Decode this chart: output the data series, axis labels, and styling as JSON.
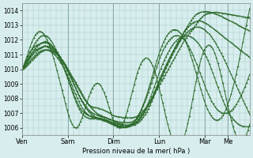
{
  "xlabel": "Pression niveau de la mer( hPa )",
  "bg_color": "#d8eeee",
  "grid_color": "#aacccc",
  "line_color": "#2d6b2d",
  "ylim": [
    1005.5,
    1014.5
  ],
  "yticks": [
    1006,
    1007,
    1008,
    1009,
    1010,
    1011,
    1012,
    1013,
    1014
  ],
  "day_labels": [
    "Ven",
    "Sam",
    "Dim",
    "Lun",
    "Mar",
    "Me"
  ],
  "day_positions": [
    0,
    48,
    96,
    144,
    192,
    216
  ],
  "total_points": 240,
  "series": [
    [
      1010.0,
      1010.15,
      1010.3,
      1010.5,
      1010.7,
      1010.9,
      1011.1,
      1011.2,
      1011.3,
      1011.35,
      1011.4,
      1011.45,
      1011.5,
      1011.55,
      1011.6,
      1011.55,
      1011.5,
      1011.45,
      1011.4,
      1011.3,
      1011.2,
      1011.1,
      1011.0,
      1010.85,
      1010.7,
      1010.55,
      1010.4,
      1010.2,
      1010.0,
      1009.8,
      1009.6,
      1009.4,
      1009.2,
      1009.0,
      1008.8,
      1008.6,
      1008.4,
      1008.2,
      1008.0,
      1007.85,
      1007.7,
      1007.6,
      1007.5,
      1007.45,
      1007.4,
      1007.38,
      1007.36,
      1007.35,
      1007.3,
      1007.25,
      1007.2,
      1007.15,
      1007.1,
      1007.05,
      1007.0,
      1006.9,
      1006.85,
      1006.8,
      1006.78,
      1006.76,
      1006.74,
      1006.72,
      1006.7,
      1006.68,
      1006.68,
      1006.68,
      1006.68,
      1006.68,
      1006.7,
      1006.72,
      1006.75,
      1006.8,
      1006.9,
      1007.0,
      1007.1,
      1007.2,
      1007.35,
      1007.5,
      1007.65,
      1007.8,
      1008.0,
      1008.2,
      1008.4,
      1008.6,
      1008.8,
      1009.0,
      1009.2,
      1009.4,
      1009.6,
      1009.8,
      1010.0,
      1010.2,
      1010.4,
      1010.6,
      1010.8,
      1011.0,
      1011.2,
      1011.4,
      1011.6,
      1011.8,
      1012.0,
      1012.15,
      1012.3,
      1012.45,
      1012.6,
      1012.75,
      1012.9,
      1013.05,
      1013.2,
      1013.35,
      1013.5,
      1013.6,
      1013.7,
      1013.75,
      1013.8,
      1013.82,
      1013.84,
      1013.86,
      1013.88,
      1013.9,
      1013.88,
      1013.86,
      1013.85,
      1013.83,
      1013.82,
      1013.8,
      1013.78,
      1013.76,
      1013.74,
      1013.72,
      1013.7,
      1013.68,
      1013.66,
      1013.64,
      1013.62,
      1013.6,
      1013.58,
      1013.56,
      1013.54,
      1013.52,
      1013.5
    ],
    [
      1010.0,
      1010.2,
      1010.45,
      1010.7,
      1010.95,
      1011.2,
      1011.35,
      1011.5,
      1011.6,
      1011.65,
      1011.7,
      1011.75,
      1011.8,
      1011.85,
      1011.9,
      1011.85,
      1011.8,
      1011.7,
      1011.6,
      1011.45,
      1011.3,
      1011.15,
      1011.0,
      1010.82,
      1010.64,
      1010.46,
      1010.28,
      1010.1,
      1009.9,
      1009.7,
      1009.5,
      1009.3,
      1009.1,
      1008.9,
      1008.7,
      1008.5,
      1008.3,
      1008.1,
      1007.9,
      1007.72,
      1007.54,
      1007.4,
      1007.26,
      1007.15,
      1007.04,
      1006.96,
      1006.9,
      1006.85,
      1006.8,
      1006.75,
      1006.7,
      1006.65,
      1006.6,
      1006.56,
      1006.52,
      1006.48,
      1006.44,
      1006.42,
      1006.4,
      1006.38,
      1006.36,
      1006.35,
      1006.35,
      1006.35,
      1006.36,
      1006.38,
      1006.42,
      1006.48,
      1006.56,
      1006.64,
      1006.74,
      1006.86,
      1006.99,
      1007.15,
      1007.32,
      1007.5,
      1007.7,
      1007.92,
      1008.14,
      1008.38,
      1008.62,
      1008.86,
      1009.1,
      1009.34,
      1009.58,
      1009.82,
      1010.06,
      1010.3,
      1010.54,
      1010.78,
      1011.02,
      1011.26,
      1011.5,
      1011.72,
      1011.94,
      1012.16,
      1012.38,
      1012.6,
      1012.78,
      1012.96,
      1013.14,
      1013.32,
      1013.5,
      1013.62,
      1013.74,
      1013.82,
      1013.86,
      1013.9,
      1013.92,
      1013.94,
      1013.94,
      1013.93,
      1013.91,
      1013.88,
      1013.85,
      1013.81,
      1013.77,
      1013.72,
      1013.67,
      1013.62,
      1013.56,
      1013.5,
      1013.44,
      1013.38,
      1013.32,
      1013.26,
      1013.2,
      1013.14,
      1013.08,
      1013.02,
      1012.96,
      1012.9,
      1012.84,
      1012.78,
      1012.72,
      1012.66,
      1012.6
    ],
    [
      1010.0,
      1010.1,
      1010.25,
      1010.42,
      1010.6,
      1010.78,
      1010.92,
      1011.06,
      1011.18,
      1011.28,
      1011.36,
      1011.43,
      1011.5,
      1011.55,
      1011.58,
      1011.58,
      1011.56,
      1011.52,
      1011.46,
      1011.38,
      1011.28,
      1011.15,
      1011.0,
      1010.82,
      1010.62,
      1010.42,
      1010.2,
      1009.98,
      1009.74,
      1009.5,
      1009.26,
      1009.02,
      1008.76,
      1008.5,
      1008.26,
      1008.02,
      1007.8,
      1007.6,
      1007.42,
      1007.26,
      1007.12,
      1007.0,
      1006.9,
      1006.82,
      1006.76,
      1006.7,
      1006.66,
      1006.63,
      1006.6,
      1006.57,
      1006.54,
      1006.5,
      1006.46,
      1006.42,
      1006.38,
      1006.34,
      1006.3,
      1006.27,
      1006.24,
      1006.22,
      1006.2,
      1006.19,
      1006.18,
      1006.18,
      1006.19,
      1006.21,
      1006.24,
      1006.29,
      1006.34,
      1006.42,
      1006.51,
      1006.62,
      1006.75,
      1006.9,
      1007.08,
      1007.28,
      1007.5,
      1007.74,
      1007.98,
      1008.24,
      1008.52,
      1008.8,
      1009.08,
      1009.36,
      1009.62,
      1009.88,
      1010.12,
      1010.36,
      1010.6,
      1010.82,
      1011.04,
      1011.26,
      1011.48,
      1011.68,
      1011.88,
      1012.06,
      1012.24,
      1012.42,
      1012.58,
      1012.74,
      1012.88,
      1013.0,
      1013.1,
      1013.18,
      1013.24,
      1013.28,
      1013.3,
      1013.3,
      1013.28,
      1013.24,
      1013.18,
      1013.12,
      1013.04,
      1012.96,
      1012.87,
      1012.78,
      1012.69,
      1012.6,
      1012.51,
      1012.42,
      1012.33,
      1012.24,
      1012.15,
      1012.06,
      1011.97,
      1011.88,
      1011.79,
      1011.7,
      1011.61,
      1011.52,
      1011.43,
      1011.34,
      1011.25,
      1011.16,
      1011.07,
      1010.98,
      1010.89,
      1010.8
    ],
    [
      1010.0,
      1010.05,
      1010.12,
      1010.22,
      1010.34,
      1010.47,
      1010.6,
      1010.73,
      1010.85,
      1010.96,
      1011.06,
      1011.15,
      1011.22,
      1011.28,
      1011.32,
      1011.33,
      1011.32,
      1011.29,
      1011.24,
      1011.17,
      1011.08,
      1010.97,
      1010.84,
      1010.69,
      1010.52,
      1010.33,
      1010.13,
      1009.91,
      1009.67,
      1009.43,
      1009.18,
      1008.93,
      1008.68,
      1008.44,
      1008.2,
      1007.98,
      1007.78,
      1007.6,
      1007.44,
      1007.3,
      1007.18,
      1007.08,
      1007.0,
      1006.93,
      1006.88,
      1006.83,
      1006.79,
      1006.76,
      1006.73,
      1006.7,
      1006.67,
      1006.63,
      1006.59,
      1006.54,
      1006.49,
      1006.44,
      1006.38,
      1006.33,
      1006.28,
      1006.24,
      1006.2,
      1006.17,
      1006.15,
      1006.14,
      1006.14,
      1006.15,
      1006.18,
      1006.22,
      1006.28,
      1006.36,
      1006.46,
      1006.58,
      1006.72,
      1006.89,
      1007.08,
      1007.3,
      1007.54,
      1007.8,
      1008.08,
      1008.36,
      1008.66,
      1008.96,
      1009.26,
      1009.56,
      1009.84,
      1010.1,
      1010.36,
      1010.6,
      1010.82,
      1011.04,
      1011.24,
      1011.44,
      1011.62,
      1011.8,
      1011.96,
      1012.12,
      1012.26,
      1012.4,
      1012.52,
      1012.63,
      1012.72,
      1012.79,
      1012.84,
      1012.87,
      1012.88,
      1012.87,
      1012.84,
      1012.79,
      1012.72,
      1012.63,
      1012.52,
      1012.4,
      1012.26,
      1012.1,
      1011.93,
      1011.74,
      1011.54,
      1011.33,
      1011.1,
      1010.87,
      1010.63,
      1010.39,
      1010.14,
      1009.89,
      1009.64,
      1009.39,
      1009.14,
      1008.89,
      1008.64,
      1008.39,
      1008.14,
      1007.89,
      1007.64,
      1007.39,
      1007.14,
      1006.9
    ],
    [
      1010.0,
      1010.08,
      1010.18,
      1010.3,
      1010.44,
      1010.58,
      1010.72,
      1010.85,
      1010.97,
      1011.07,
      1011.16,
      1011.23,
      1011.28,
      1011.31,
      1011.32,
      1011.3,
      1011.27,
      1011.21,
      1011.14,
      1011.05,
      1010.93,
      1010.8,
      1010.65,
      1010.48,
      1010.29,
      1010.1,
      1009.88,
      1009.65,
      1009.4,
      1009.14,
      1008.87,
      1008.59,
      1008.31,
      1008.04,
      1007.79,
      1007.56,
      1007.35,
      1007.18,
      1007.04,
      1006.93,
      1006.85,
      1006.8,
      1006.76,
      1006.73,
      1006.7,
      1006.67,
      1006.64,
      1006.61,
      1006.58,
      1006.54,
      1006.5,
      1006.46,
      1006.41,
      1006.36,
      1006.31,
      1006.26,
      1006.21,
      1006.17,
      1006.13,
      1006.1,
      1006.08,
      1006.07,
      1006.07,
      1006.08,
      1006.1,
      1006.14,
      1006.19,
      1006.26,
      1006.35,
      1006.46,
      1006.59,
      1006.74,
      1006.92,
      1007.12,
      1007.35,
      1007.6,
      1007.87,
      1008.16,
      1008.46,
      1008.78,
      1009.1,
      1009.42,
      1009.74,
      1010.04,
      1010.33,
      1010.6,
      1010.85,
      1011.08,
      1011.29,
      1011.48,
      1011.65,
      1011.8,
      1011.93,
      1012.04,
      1012.13,
      1012.2,
      1012.25,
      1012.28,
      1012.29,
      1012.28,
      1012.25,
      1012.2,
      1012.13,
      1012.04,
      1011.93,
      1011.8,
      1011.65,
      1011.48,
      1011.29,
      1011.08,
      1010.85,
      1010.6,
      1010.33,
      1010.04,
      1009.74,
      1009.42,
      1009.1,
      1008.78,
      1008.46,
      1008.16,
      1007.87,
      1007.6,
      1007.35,
      1007.12,
      1006.92,
      1006.74,
      1006.59,
      1006.46,
      1006.35,
      1006.26,
      1006.19,
      1006.14,
      1006.1,
      1006.08,
      1006.07,
      1006.07,
      1006.08
    ],
    [
      1010.0,
      1010.12,
      1010.28,
      1010.46,
      1010.66,
      1010.86,
      1011.06,
      1011.24,
      1011.4,
      1011.54,
      1011.65,
      1011.74,
      1011.8,
      1011.83,
      1011.83,
      1011.8,
      1011.73,
      1011.64,
      1011.52,
      1011.38,
      1011.22,
      1011.04,
      1010.84,
      1010.62,
      1010.38,
      1010.13,
      1009.86,
      1009.57,
      1009.27,
      1008.96,
      1008.65,
      1008.34,
      1008.05,
      1007.78,
      1007.54,
      1007.34,
      1007.18,
      1007.06,
      1006.97,
      1006.9,
      1006.85,
      1006.8,
      1006.76,
      1006.72,
      1006.68,
      1006.64,
      1006.6,
      1006.56,
      1006.52,
      1006.48,
      1006.44,
      1006.39,
      1006.34,
      1006.29,
      1006.24,
      1006.19,
      1006.14,
      1006.1,
      1006.07,
      1006.05,
      1006.04,
      1006.04,
      1006.05,
      1006.08,
      1006.12,
      1006.18,
      1006.26,
      1006.36,
      1006.49,
      1006.64,
      1006.82,
      1007.02,
      1007.24,
      1007.49,
      1007.77,
      1008.07,
      1008.39,
      1008.73,
      1009.08,
      1009.43,
      1009.78,
      1010.12,
      1010.45,
      1010.76,
      1011.04,
      1011.3,
      1011.53,
      1011.73,
      1011.9,
      1012.04,
      1012.15,
      1012.23,
      1012.28,
      1012.3,
      1012.29,
      1012.25,
      1012.18,
      1012.08,
      1011.95,
      1011.79,
      1011.61,
      1011.4,
      1011.17,
      1010.92,
      1010.65,
      1010.37,
      1010.08,
      1009.78,
      1009.48,
      1009.18,
      1008.88,
      1008.59,
      1008.32,
      1008.07,
      1007.84,
      1007.63,
      1007.45,
      1007.3,
      1007.18,
      1007.09,
      1007.03,
      1006.99,
      1006.98,
      1006.99,
      1007.03,
      1007.09,
      1007.18,
      1007.3,
      1007.44,
      1007.61,
      1007.8,
      1008.01,
      1008.24,
      1008.49,
      1008.76,
      1009.04,
      1009.34,
      1009.65
    ],
    [
      1010.0,
      1010.18,
      1010.4,
      1010.64,
      1010.9,
      1011.16,
      1011.4,
      1011.62,
      1011.82,
      1011.98,
      1012.12,
      1012.22,
      1012.28,
      1012.3,
      1012.28,
      1012.22,
      1012.12,
      1011.98,
      1011.82,
      1011.62,
      1011.4,
      1011.16,
      1010.9,
      1010.62,
      1010.34,
      1010.04,
      1009.73,
      1009.4,
      1009.07,
      1008.73,
      1008.39,
      1008.07,
      1007.77,
      1007.5,
      1007.27,
      1007.07,
      1006.91,
      1006.79,
      1006.71,
      1006.66,
      1006.63,
      1006.62,
      1006.62,
      1006.62,
      1006.62,
      1006.62,
      1006.62,
      1006.62,
      1006.6,
      1006.57,
      1006.53,
      1006.48,
      1006.42,
      1006.36,
      1006.29,
      1006.22,
      1006.16,
      1006.11,
      1006.07,
      1006.05,
      1006.04,
      1006.04,
      1006.05,
      1006.09,
      1006.15,
      1006.23,
      1006.34,
      1006.48,
      1006.65,
      1006.85,
      1007.08,
      1007.33,
      1007.62,
      1007.93,
      1008.27,
      1008.64,
      1009.02,
      1009.42,
      1009.82,
      1010.22,
      1010.6,
      1010.96,
      1011.3,
      1011.6,
      1011.87,
      1012.1,
      1012.3,
      1012.46,
      1012.58,
      1012.66,
      1012.7,
      1012.7,
      1012.66,
      1012.58,
      1012.46,
      1012.3,
      1012.1,
      1011.87,
      1011.6,
      1011.3,
      1010.96,
      1010.6,
      1010.22,
      1009.82,
      1009.42,
      1009.02,
      1008.62,
      1008.24,
      1007.88,
      1007.55,
      1007.26,
      1007.02,
      1006.82,
      1006.67,
      1006.57,
      1006.52,
      1006.52,
      1006.57,
      1006.67,
      1006.82,
      1007.02,
      1007.27,
      1007.57,
      1007.91,
      1008.29,
      1008.71,
      1009.17,
      1009.66,
      1010.18,
      1010.72,
      1011.28,
      1011.86,
      1012.44,
      1013.02,
      1013.6,
      1014.14
    ],
    [
      1010.0,
      1010.25,
      1010.55,
      1010.88,
      1011.22,
      1011.56,
      1011.86,
      1012.12,
      1012.33,
      1012.48,
      1012.56,
      1012.58,
      1012.53,
      1012.42,
      1012.25,
      1012.03,
      1011.76,
      1011.44,
      1011.1,
      1010.72,
      1010.32,
      1009.9,
      1009.46,
      1009.01,
      1008.55,
      1008.09,
      1007.64,
      1007.21,
      1006.82,
      1006.49,
      1006.23,
      1006.06,
      1006.0,
      1006.04,
      1006.18,
      1006.41,
      1006.7,
      1007.04,
      1007.4,
      1007.77,
      1008.12,
      1008.43,
      1008.69,
      1008.88,
      1009.0,
      1009.04,
      1009.0,
      1008.88,
      1008.69,
      1008.43,
      1008.12,
      1007.77,
      1007.4,
      1007.04,
      1006.7,
      1006.41,
      1006.18,
      1006.04,
      1006.0,
      1006.06,
      1006.22,
      1006.47,
      1006.79,
      1007.17,
      1007.59,
      1008.04,
      1008.5,
      1008.95,
      1009.38,
      1009.76,
      1010.1,
      1010.37,
      1010.57,
      1010.7,
      1010.76,
      1010.74,
      1010.64,
      1010.47,
      1010.23,
      1009.93,
      1009.57,
      1009.16,
      1008.71,
      1008.23,
      1007.73,
      1007.23,
      1006.74,
      1006.27,
      1005.84,
      1005.46,
      1005.15,
      1004.91,
      1004.76,
      1004.7,
      1004.74,
      1004.87,
      1005.1,
      1005.42,
      1005.81,
      1006.28,
      1006.8,
      1007.37,
      1007.96,
      1008.57,
      1009.17,
      1009.74,
      1010.26,
      1010.71,
      1011.07,
      1011.35,
      1011.54,
      1011.63,
      1011.63,
      1011.55,
      1011.38,
      1011.13,
      1010.81,
      1010.43,
      1010.0,
      1009.53,
      1009.03,
      1008.51,
      1007.99,
      1007.47,
      1006.97,
      1006.5,
      1006.08,
      1005.72,
      1005.43,
      1005.22,
      1005.1,
      1005.07,
      1005.13,
      1005.28,
      1005.52,
      1005.84,
      1006.24
    ]
  ]
}
